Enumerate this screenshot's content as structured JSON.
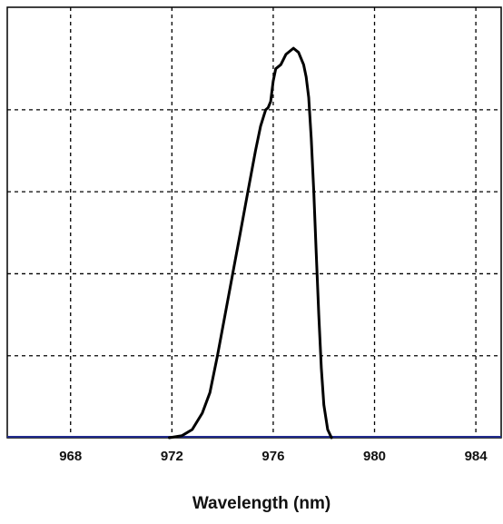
{
  "chart_data": {
    "type": "line",
    "title": "",
    "xlabel": "Wavelength (nm)",
    "ylabel": "",
    "xlim": [
      965.5,
      985
    ],
    "ylim": [
      0,
      1.05
    ],
    "x_ticks": [
      968,
      972,
      976,
      980,
      984
    ],
    "x_tick_labels": [
      "968",
      "972",
      "976",
      "980",
      "984"
    ],
    "y_gridlines": [
      0.2,
      0.4,
      0.6,
      0.8
    ],
    "grid": true,
    "legend": "none",
    "colors": {
      "curve": "#000000",
      "baseline": "#1f2a8c"
    },
    "series": [
      {
        "values": [
          [
            971.9,
            0.0
          ],
          [
            972.4,
            0.005
          ],
          [
            972.8,
            0.02
          ],
          [
            973.2,
            0.06
          ],
          [
            973.5,
            0.11
          ],
          [
            973.8,
            0.2
          ],
          [
            974.1,
            0.3
          ],
          [
            974.4,
            0.4
          ],
          [
            974.7,
            0.5
          ],
          [
            975.0,
            0.6
          ],
          [
            975.3,
            0.7
          ],
          [
            975.5,
            0.76
          ],
          [
            975.7,
            0.8
          ],
          [
            975.8,
            0.805
          ],
          [
            975.9,
            0.82
          ],
          [
            976.0,
            0.87
          ],
          [
            976.1,
            0.9
          ],
          [
            976.3,
            0.91
          ],
          [
            976.5,
            0.935
          ],
          [
            976.8,
            0.95
          ],
          [
            977.0,
            0.94
          ],
          [
            977.2,
            0.91
          ],
          [
            977.3,
            0.88
          ],
          [
            977.4,
            0.83
          ],
          [
            977.5,
            0.73
          ],
          [
            977.6,
            0.6
          ],
          [
            977.7,
            0.45
          ],
          [
            977.8,
            0.3
          ],
          [
            977.9,
            0.17
          ],
          [
            978.0,
            0.08
          ],
          [
            978.15,
            0.02
          ],
          [
            978.3,
            0.0
          ]
        ]
      }
    ]
  }
}
